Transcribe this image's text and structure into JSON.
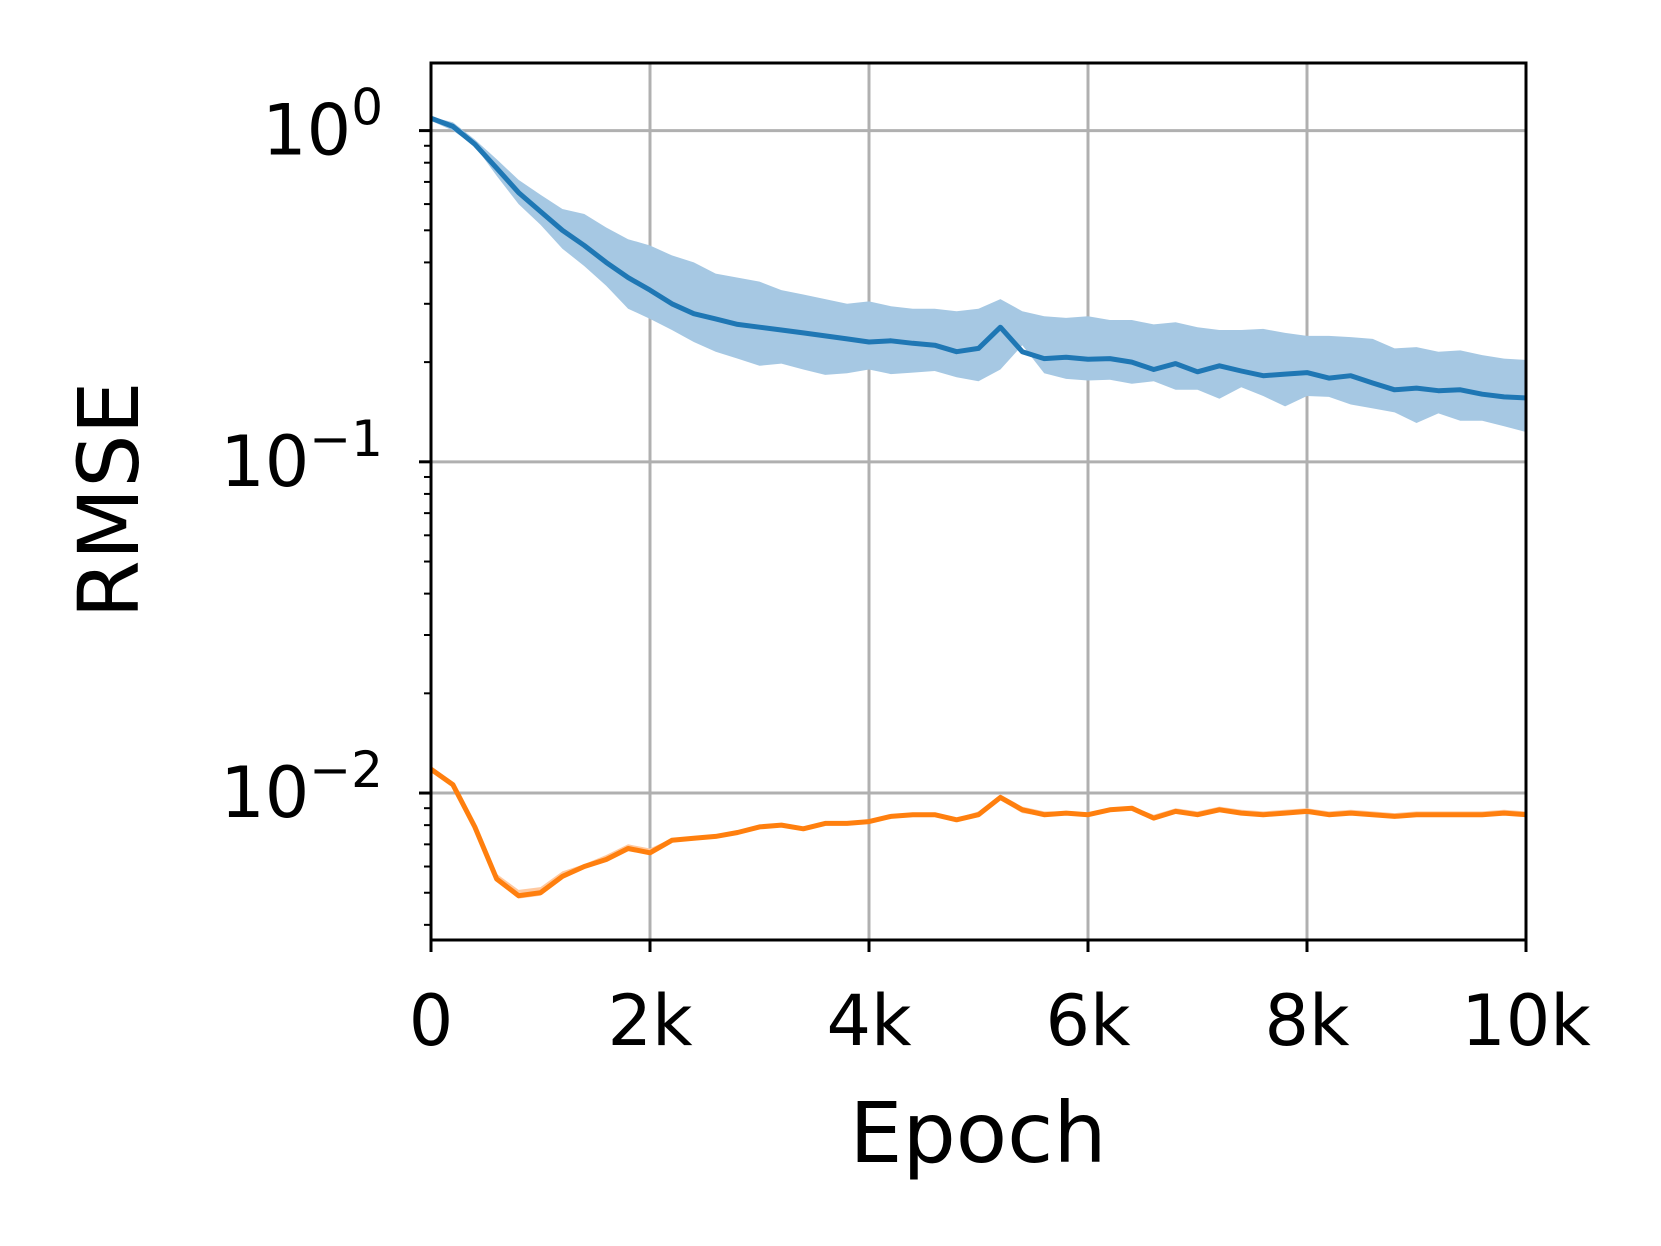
{
  "chart_data": {
    "type": "line",
    "title": "",
    "xlabel": "Epoch",
    "ylabel": "RMSE",
    "xlim": [
      0,
      10000
    ],
    "ylim": [
      0.0036,
      1.6
    ],
    "yscale": "log",
    "grid": true,
    "legend": "none",
    "x_ticks": [
      {
        "value": 0,
        "label": "0"
      },
      {
        "value": 2000,
        "label": "2k"
      },
      {
        "value": 4000,
        "label": "4k"
      },
      {
        "value": 6000,
        "label": "6k"
      },
      {
        "value": 8000,
        "label": "8k"
      },
      {
        "value": 10000,
        "label": "10k"
      }
    ],
    "y_ticks": [
      {
        "value": 1,
        "base": "10",
        "exp": "0"
      },
      {
        "value": 0.1,
        "base": "10",
        "exp": "−1"
      },
      {
        "value": 0.01,
        "base": "10",
        "exp": "−2"
      }
    ],
    "x": [
      0,
      200,
      400,
      600,
      800,
      1000,
      1200,
      1400,
      1600,
      1800,
      2000,
      2200,
      2400,
      2600,
      2800,
      3000,
      3200,
      3400,
      3600,
      3800,
      4000,
      4200,
      4400,
      4600,
      4800,
      5000,
      5200,
      5400,
      5600,
      5800,
      6000,
      6200,
      6400,
      6600,
      6800,
      7000,
      7200,
      7400,
      7600,
      7800,
      8000,
      8200,
      8400,
      8600,
      8800,
      9000,
      9200,
      9400,
      9600,
      9800,
      10000
    ],
    "series": [
      {
        "color": "#1f77b4",
        "band_color": "#a6c8e3",
        "values": [
          1.09,
          1.03,
          0.91,
          0.77,
          0.65,
          0.57,
          0.5,
          0.45,
          0.4,
          0.36,
          0.33,
          0.3,
          0.28,
          0.27,
          0.26,
          0.255,
          0.25,
          0.245,
          0.24,
          0.235,
          0.23,
          0.232,
          0.228,
          0.225,
          0.215,
          0.22,
          0.255,
          0.215,
          0.205,
          0.207,
          0.204,
          0.205,
          0.2,
          0.19,
          0.198,
          0.187,
          0.195,
          0.188,
          0.182,
          0.184,
          0.186,
          0.179,
          0.182,
          0.173,
          0.165,
          0.167,
          0.164,
          0.165,
          0.16,
          0.157,
          0.156
        ],
        "upper": [
          1.1,
          1.06,
          0.94,
          0.82,
          0.71,
          0.64,
          0.58,
          0.56,
          0.51,
          0.47,
          0.45,
          0.42,
          0.4,
          0.37,
          0.36,
          0.35,
          0.33,
          0.32,
          0.31,
          0.3,
          0.305,
          0.295,
          0.29,
          0.29,
          0.285,
          0.29,
          0.31,
          0.285,
          0.275,
          0.272,
          0.275,
          0.268,
          0.268,
          0.26,
          0.264,
          0.255,
          0.25,
          0.25,
          0.252,
          0.245,
          0.24,
          0.24,
          0.238,
          0.235,
          0.22,
          0.222,
          0.215,
          0.217,
          0.21,
          0.205,
          0.203
        ],
        "lower": [
          1.07,
          1.0,
          0.9,
          0.73,
          0.6,
          0.52,
          0.44,
          0.39,
          0.34,
          0.29,
          0.27,
          0.25,
          0.23,
          0.215,
          0.205,
          0.195,
          0.198,
          0.19,
          0.183,
          0.185,
          0.19,
          0.184,
          0.186,
          0.188,
          0.18,
          0.175,
          0.19,
          0.225,
          0.185,
          0.178,
          0.176,
          0.177,
          0.172,
          0.175,
          0.165,
          0.165,
          0.155,
          0.168,
          0.158,
          0.147,
          0.158,
          0.157,
          0.149,
          0.145,
          0.141,
          0.131,
          0.14,
          0.133,
          0.133,
          0.128,
          0.123
        ]
      },
      {
        "color": "#ff7f0e",
        "band_color": "#ffc9a0",
        "values": [
          0.0118,
          0.0106,
          0.0079,
          0.0055,
          0.0049,
          0.005,
          0.0056,
          0.006,
          0.0063,
          0.0068,
          0.0066,
          0.0072,
          0.0073,
          0.0074,
          0.0076,
          0.0079,
          0.008,
          0.0078,
          0.0081,
          0.0081,
          0.0082,
          0.0085,
          0.0086,
          0.0086,
          0.0083,
          0.0086,
          0.0097,
          0.0089,
          0.0086,
          0.0087,
          0.0086,
          0.0089,
          0.009,
          0.0084,
          0.0088,
          0.0086,
          0.0089,
          0.0087,
          0.0086,
          0.0087,
          0.0088,
          0.0086,
          0.0087,
          0.0086,
          0.0085,
          0.0086,
          0.0086,
          0.0086,
          0.0086,
          0.0087,
          0.0086
        ],
        "upper": [
          0.012,
          0.0108,
          0.0081,
          0.0057,
          0.0051,
          0.0052,
          0.0058,
          0.0061,
          0.0065,
          0.007,
          0.0068,
          0.0073,
          0.0074,
          0.0075,
          0.0077,
          0.008,
          0.0081,
          0.0079,
          0.0082,
          0.0082,
          0.0083,
          0.0086,
          0.0087,
          0.0087,
          0.0084,
          0.0088,
          0.0099,
          0.0091,
          0.0088,
          0.0088,
          0.0087,
          0.009,
          0.0091,
          0.0086,
          0.009,
          0.0088,
          0.0091,
          0.0089,
          0.0088,
          0.0089,
          0.009,
          0.0088,
          0.0089,
          0.0088,
          0.0087,
          0.0088,
          0.0088,
          0.0088,
          0.0088,
          0.0089,
          0.0088
        ],
        "lower": [
          0.0116,
          0.0104,
          0.0077,
          0.0054,
          0.0048,
          0.0049,
          0.0055,
          0.0059,
          0.0062,
          0.0067,
          0.0065,
          0.0071,
          0.0072,
          0.0073,
          0.0075,
          0.0078,
          0.0079,
          0.0077,
          0.008,
          0.008,
          0.0081,
          0.0084,
          0.0085,
          0.0085,
          0.0082,
          0.0085,
          0.0095,
          0.0087,
          0.0085,
          0.0086,
          0.0085,
          0.0088,
          0.0089,
          0.0083,
          0.0087,
          0.0085,
          0.0088,
          0.0086,
          0.0085,
          0.0086,
          0.0087,
          0.0085,
          0.0086,
          0.0085,
          0.0084,
          0.0085,
          0.0085,
          0.0085,
          0.0085,
          0.0086,
          0.0085
        ]
      }
    ]
  }
}
